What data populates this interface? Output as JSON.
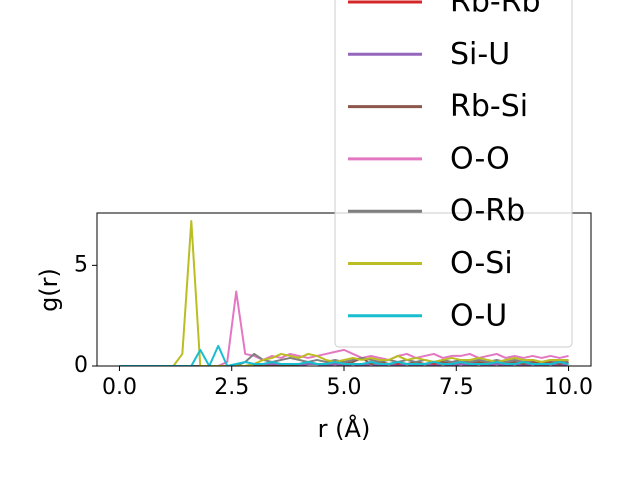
{
  "chart_data": {
    "type": "line",
    "xlabel": "r (Å)",
    "ylabel": "g(r)",
    "x": [
      0,
      0.2,
      0.4,
      0.6,
      0.8,
      1,
      1.2,
      1.4,
      1.6,
      1.8,
      2,
      2.2,
      2.4,
      2.6,
      2.8,
      3,
      3.2,
      3.4,
      3.6,
      3.8,
      4,
      4.2,
      4.4,
      4.6,
      4.8,
      5,
      5.2,
      5.4,
      5.6,
      5.8,
      6,
      6.2,
      6.4,
      6.6,
      6.8,
      7,
      7.2,
      7.4,
      7.6,
      7.8,
      8,
      8.2,
      8.4,
      8.6,
      8.8,
      9,
      9.2,
      9.4,
      9.6,
      9.8,
      10
    ],
    "series": [
      {
        "name": "Rb-Rb",
        "color": "#d62728",
        "values": [
          0,
          0,
          0,
          0,
          0,
          0,
          0,
          0,
          0,
          0,
          0,
          0,
          0,
          0,
          0,
          0,
          0,
          0.1,
          0.1,
          0.1,
          0.1,
          0.1,
          0.1,
          0.1,
          0.1,
          0.1,
          0.1,
          0.1,
          0.1,
          0.1,
          0.1,
          0.1,
          0.1,
          0.1,
          0.1,
          0.1,
          0.1,
          0.1,
          0.1,
          0.1,
          0.1,
          0.1,
          0.1,
          0.1,
          0.1,
          0.1,
          0.1,
          0.1,
          0.1,
          0.1,
          0.1
        ]
      },
      {
        "name": "Si-U",
        "color": "#9467bd",
        "values": [
          0,
          0,
          0,
          0,
          0,
          0,
          0,
          0,
          0,
          0,
          0,
          0,
          0,
          0,
          0,
          0.1,
          0,
          0.1,
          0,
          0.1,
          0,
          0.1,
          0.1,
          0,
          0.1,
          0,
          0.1,
          0,
          0.1,
          0,
          0.1,
          0,
          0.1,
          0,
          0.1,
          0,
          0.1,
          0,
          0.1,
          0,
          0.1,
          0,
          0.1,
          0,
          0.1,
          0,
          0.1,
          0,
          0.1,
          0,
          0.1
        ]
      },
      {
        "name": "Rb-Si",
        "color": "#8c564b",
        "values": [
          0,
          0,
          0,
          0,
          0,
          0,
          0,
          0,
          0,
          0,
          0,
          0,
          0,
          0,
          0,
          0,
          0,
          0,
          0,
          0,
          0.1,
          0.2,
          0.1,
          0.1,
          0.2,
          0.1,
          0.2,
          0.4,
          0.1,
          0.2,
          0.1,
          0.2,
          0.1,
          0.2,
          0.1,
          0.2,
          0.2,
          0.1,
          0.2,
          0.1,
          0.2,
          0.1,
          0.2,
          0.1,
          0.2,
          0.1,
          0.2,
          0.1,
          0.2,
          0.1,
          0.2
        ]
      },
      {
        "name": "O-O",
        "color": "#e377c2",
        "values": [
          0,
          0,
          0,
          0,
          0,
          0,
          0,
          0,
          0,
          0,
          0,
          0,
          0.2,
          3.7,
          0.6,
          0.5,
          0.3,
          0.5,
          0.4,
          0.6,
          0.5,
          0.4,
          0.5,
          0.6,
          0.7,
          0.8,
          0.6,
          0.4,
          0.5,
          0.4,
          0.3,
          0.5,
          0.6,
          0.4,
          0.5,
          0.6,
          0.4,
          0.5,
          0.5,
          0.6,
          0.4,
          0.5,
          0.6,
          0.4,
          0.5,
          0.4,
          0.5,
          0.4,
          0.5,
          0.4,
          0.5
        ]
      },
      {
        "name": "O-Rb",
        "color": "#7f7f7f",
        "values": [
          0,
          0,
          0,
          0,
          0,
          0,
          0,
          0,
          0,
          0,
          0,
          0,
          0,
          0,
          0.2,
          0.6,
          0.3,
          0.2,
          0.3,
          0.4,
          0.3,
          0.2,
          0.3,
          0.2,
          0.3,
          0.2,
          0.3,
          0.4,
          0.3,
          0.2,
          0.3,
          0.2,
          0.3,
          0.2,
          0.3,
          0.2,
          0.3,
          0.2,
          0.3,
          0.2,
          0.3,
          0.2,
          0.3,
          0.2,
          0.3,
          0.2,
          0.3,
          0.2,
          0.3,
          0.2,
          0.3
        ]
      },
      {
        "name": "O-Si",
        "color": "#bcbd22",
        "values": [
          0,
          0,
          0,
          0,
          0,
          0,
          0,
          0.6,
          7.2,
          0,
          0,
          0,
          0,
          0,
          0,
          0.1,
          0.3,
          0.4,
          0.6,
          0.5,
          0.4,
          0.6,
          0.5,
          0.3,
          0.2,
          0.3,
          0.4,
          0.3,
          0.4,
          0.3,
          0.3,
          0.5,
          0.3,
          0.4,
          0.3,
          0.2,
          0.3,
          0.4,
          0.3,
          0.3,
          0.4,
          0.3,
          0.2,
          0.3,
          0.4,
          0.3,
          0.3,
          0.2,
          0.3,
          0.3,
          0.3
        ]
      },
      {
        "name": "O-U",
        "color": "#17becf",
        "values": [
          0,
          0,
          0,
          0,
          0,
          0,
          0,
          0,
          0,
          0.8,
          0,
          1.0,
          0,
          0.1,
          0.2,
          0.1,
          0.1,
          0.2,
          0.1,
          0.1,
          0.1,
          0.2,
          0.1,
          0.1,
          0.2,
          0.1,
          0.1,
          0.1,
          0.2,
          0.1,
          0.1,
          0.2,
          0.1,
          0.1,
          0.1,
          0.2,
          0.1,
          0.1,
          0.2,
          0.1,
          0.1,
          0.1,
          0.2,
          0.1,
          0.1,
          0.2,
          0.1,
          0.1,
          0.1,
          0.2,
          0.1
        ]
      }
    ],
    "xlim": [
      -0.5,
      10.5
    ],
    "ylim": [
      0,
      7.6
    ],
    "xticks": [
      {
        "value": 0,
        "label": "0.0"
      },
      {
        "value": 2.5,
        "label": "2.5"
      },
      {
        "value": 5,
        "label": "5.0"
      },
      {
        "value": 7.5,
        "label": "7.5"
      },
      {
        "value": 10,
        "label": "10.0"
      }
    ],
    "yticks": [
      0,
      5
    ],
    "legend": "upper right"
  }
}
